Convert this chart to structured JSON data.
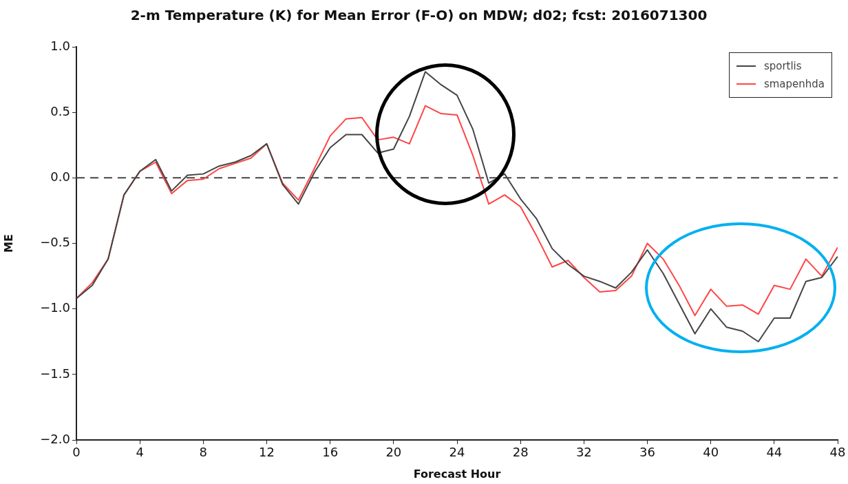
{
  "chart_data": {
    "type": "line",
    "title": "2-m Temperature (K) for Mean Error (F-O) on MDW; d02; fcst: 2016071300",
    "xlabel": "Forecast Hour",
    "ylabel": "ME",
    "x": [
      0,
      1,
      2,
      3,
      4,
      5,
      6,
      7,
      8,
      9,
      10,
      11,
      12,
      13,
      14,
      15,
      16,
      17,
      18,
      19,
      20,
      21,
      22,
      23,
      24,
      25,
      26,
      27,
      28,
      29,
      30,
      31,
      32,
      33,
      34,
      35,
      36,
      37,
      38,
      39,
      40,
      41,
      42,
      43,
      44,
      45,
      46,
      47,
      48
    ],
    "series": [
      {
        "name": "sportlis",
        "color": "#444444",
        "values": [
          -0.92,
          -0.82,
          -0.62,
          -0.13,
          0.05,
          0.14,
          -0.1,
          0.02,
          0.03,
          0.09,
          0.12,
          0.17,
          0.26,
          -0.05,
          -0.2,
          0.04,
          0.23,
          0.33,
          0.33,
          0.19,
          0.22,
          0.47,
          0.81,
          0.71,
          0.63,
          0.37,
          -0.04,
          0.03,
          -0.16,
          -0.31,
          -0.54,
          -0.66,
          -0.75,
          -0.79,
          -0.84,
          -0.72,
          -0.55,
          -0.73,
          -0.96,
          -1.19,
          -1,
          -1.14,
          -1.17,
          -1.25,
          -1.07,
          -1.07,
          -0.79,
          -0.76,
          -0.6
        ]
      },
      {
        "name": "smapenhda",
        "color": "#ff4444",
        "values": [
          -0.92,
          -0.8,
          -0.62,
          -0.13,
          0.05,
          0.12,
          -0.12,
          -0.02,
          -0.01,
          0.07,
          0.11,
          0.15,
          0.26,
          -0.04,
          -0.17,
          0.07,
          0.32,
          0.45,
          0.46,
          0.29,
          0.31,
          0.26,
          0.55,
          0.49,
          0.48,
          0.17,
          -0.2,
          -0.13,
          -0.22,
          -0.44,
          -0.68,
          -0.63,
          -0.76,
          -0.87,
          -0.86,
          -0.75,
          -0.5,
          -0.62,
          -0.82,
          -1.05,
          -0.85,
          -0.98,
          -0.97,
          -1.04,
          -0.82,
          -0.85,
          -0.62,
          -0.75,
          -0.53
        ]
      }
    ],
    "xlim": [
      0,
      48
    ],
    "xticks": [
      0,
      4,
      8,
      12,
      16,
      20,
      24,
      28,
      32,
      36,
      40,
      44,
      48
    ],
    "ylim": [
      -2,
      1
    ],
    "yticks": [
      {
        "value": -2,
        "label": "−2.0"
      },
      {
        "value": -1.5,
        "label": "−1.5"
      },
      {
        "value": -1,
        "label": "−1.0"
      },
      {
        "value": -0.5,
        "label": "−0.5"
      },
      {
        "value": 0,
        "label": "0.0"
      },
      {
        "value": 0.5,
        "label": "0.5"
      },
      {
        "value": 1,
        "label": "1.0"
      }
    ],
    "ref_lines": [
      {
        "axis": "y",
        "value": 0,
        "color": "#444444",
        "line_style": "dashed"
      }
    ],
    "grid": false,
    "legend": "top right",
    "marker": "none",
    "line_style": "solid"
  }
}
